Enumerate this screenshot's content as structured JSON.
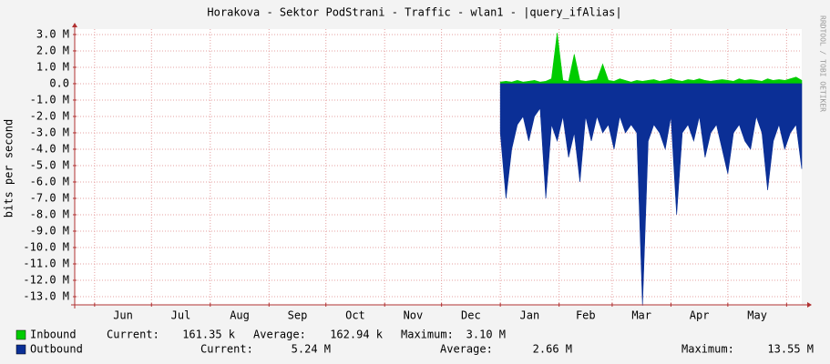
{
  "chart_data": {
    "type": "area",
    "title": "Horakova - Sektor PodStrani - Traffic - wlan1 - |query_ifAlias|",
    "y_label": "bits per second",
    "watermark": "RRDTOOL / TOBI OETIKER",
    "xlim": [
      -10.5,
      373
    ],
    "ylim": [
      -13.5,
      3.33
    ],
    "grid": true,
    "xgrid": [
      0,
      30,
      61,
      92,
      122,
      153,
      183,
      214,
      245,
      273,
      304,
      334,
      365
    ],
    "xticks": [
      {
        "value": 15,
        "label": "Jun"
      },
      {
        "value": 45.5,
        "label": "Jul"
      },
      {
        "value": 76.5,
        "label": "Aug"
      },
      {
        "value": 107,
        "label": "Sep"
      },
      {
        "value": 137.5,
        "label": "Oct"
      },
      {
        "value": 168,
        "label": "Nov"
      },
      {
        "value": 198.5,
        "label": "Dec"
      },
      {
        "value": 229.5,
        "label": "Jan"
      },
      {
        "value": 259,
        "label": "Feb"
      },
      {
        "value": 288.5,
        "label": "Mar"
      },
      {
        "value": 319,
        "label": "Apr"
      },
      {
        "value": 349.5,
        "label": "May"
      }
    ],
    "yticks": [
      {
        "value": 3,
        "label": "3.0 M"
      },
      {
        "value": 2,
        "label": "2.0 M"
      },
      {
        "value": 1,
        "label": "1.0 M"
      },
      {
        "value": 0,
        "label": "0.0"
      },
      {
        "value": -1,
        "label": "-1.0 M"
      },
      {
        "value": -2,
        "label": "-2.0 M"
      },
      {
        "value": -3,
        "label": "-3.0 M"
      },
      {
        "value": -4,
        "label": "-4.0 M"
      },
      {
        "value": -5,
        "label": "-5.0 M"
      },
      {
        "value": -6,
        "label": "-6.0 M"
      },
      {
        "value": -7,
        "label": "-7.0 M"
      },
      {
        "value": -8,
        "label": "-8.0 M"
      },
      {
        "value": -9,
        "label": "-9.0 M"
      },
      {
        "value": -10,
        "label": "-10.0 M"
      },
      {
        "value": -11,
        "label": "-11.0 M"
      },
      {
        "value": -12,
        "label": "-12.0 M"
      },
      {
        "value": -13,
        "label": "-13.0 M"
      }
    ],
    "x": [
      214,
      217,
      220,
      223,
      226,
      229,
      232,
      235,
      238,
      241,
      244,
      247,
      250,
      253,
      256,
      259,
      262,
      265,
      268,
      271,
      274,
      277,
      280,
      283,
      286,
      289,
      292,
      295,
      298,
      301,
      304,
      307,
      310,
      313,
      316,
      319,
      322,
      325,
      328,
      331,
      334,
      337,
      340,
      343,
      346,
      349,
      352,
      355,
      358,
      361,
      364,
      367,
      370,
      373
    ],
    "series": [
      {
        "name": "Inbound",
        "color": "#00cc00",
        "values": [
          0.1,
          0.15,
          0.1,
          0.2,
          0.1,
          0.15,
          0.2,
          0.1,
          0.15,
          0.3,
          3.1,
          0.2,
          0.15,
          1.8,
          0.2,
          0.15,
          0.2,
          0.25,
          1.2,
          0.2,
          0.15,
          0.3,
          0.2,
          0.1,
          0.2,
          0.15,
          0.2,
          0.25,
          0.15,
          0.2,
          0.3,
          0.2,
          0.15,
          0.25,
          0.2,
          0.3,
          0.2,
          0.15,
          0.2,
          0.25,
          0.2,
          0.15,
          0.3,
          0.2,
          0.25,
          0.2,
          0.15,
          0.3,
          0.2,
          0.25,
          0.2,
          0.3,
          0.4,
          0.2
        ],
        "stats": [
          {
            "label": "Current:",
            "value": "161.35 k"
          },
          {
            "label": "Average:",
            "value": "162.94 k"
          },
          {
            "label": "Maximum:",
            "value": "3.10 M"
          }
        ]
      },
      {
        "name": "Outbound",
        "color": "#0b2f96",
        "values": [
          -3,
          -7,
          -4,
          -2.5,
          -2,
          -3.5,
          -2,
          -1.5,
          -7,
          -2.5,
          -3.5,
          -2,
          -4.5,
          -3,
          -6,
          -2,
          -3.5,
          -2,
          -3,
          -2.5,
          -4,
          -2,
          -3,
          -2.5,
          -3,
          -13.55,
          -3.5,
          -2.5,
          -3,
          -4,
          -2,
          -8,
          -3,
          -2.5,
          -3.5,
          -2,
          -4.5,
          -3,
          -2.5,
          -4,
          -5.5,
          -3,
          -2.5,
          -3.5,
          -4,
          -2,
          -3,
          -6.5,
          -3.5,
          -2.5,
          -4,
          -3,
          -2.5,
          -5.2
        ],
        "stats": [
          {
            "label": "Current:",
            "value": "5.24 M"
          },
          {
            "label": "Average:",
            "value": "2.66 M"
          },
          {
            "label": "Maximum:",
            "value": "13.55 M"
          }
        ]
      }
    ]
  }
}
